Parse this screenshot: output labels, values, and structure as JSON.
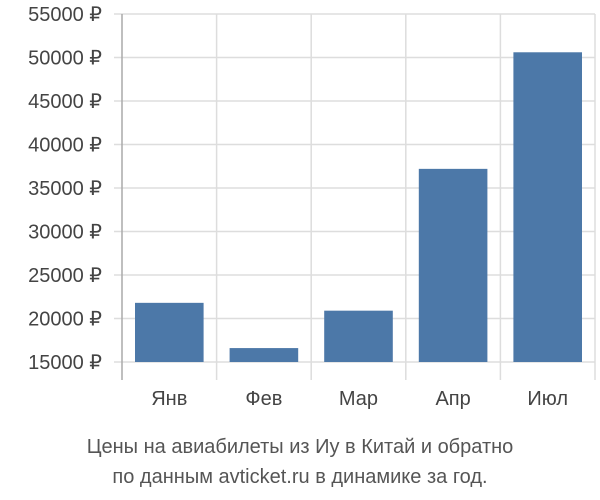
{
  "chart_data": {
    "type": "bar",
    "categories": [
      "Янв",
      "Фев",
      "Мар",
      "Апр",
      "Июл"
    ],
    "values": [
      21800,
      16600,
      20900,
      37200,
      50600
    ],
    "ylim": [
      15000,
      55000
    ],
    "yticks": [
      "15000 ₽",
      "20000 ₽",
      "25000 ₽",
      "30000 ₽",
      "35000 ₽",
      "40000 ₽",
      "45000 ₽",
      "50000 ₽",
      "55000 ₽"
    ],
    "ytick_values": [
      15000,
      20000,
      25000,
      30000,
      35000,
      40000,
      45000,
      50000,
      55000
    ],
    "grid": true,
    "bar_color": "#4c78a8",
    "title_lines": [
      "Цены на авиабилеты из Иу в Китай и обратно",
      "по данным avticket.ru в динамике за год."
    ]
  }
}
